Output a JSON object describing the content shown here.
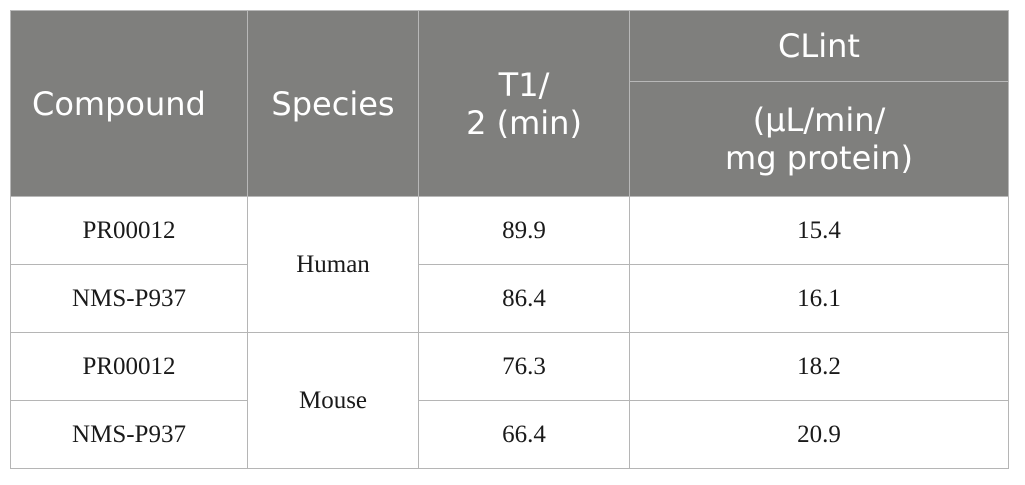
{
  "table": {
    "headers": {
      "compound": "Compound",
      "species": "Species",
      "t_half": "T1/\n2 (min)",
      "clint": "CLint",
      "clint_units": "(µL/min/\nmg protein)"
    },
    "groups": [
      {
        "species": "Human",
        "rows": [
          {
            "compound": "PR00012",
            "t_half": "89.9",
            "clint": "15.4"
          },
          {
            "compound": "NMS-P937",
            "t_half": "86.4",
            "clint": "16.1"
          }
        ]
      },
      {
        "species": "Mouse",
        "rows": [
          {
            "compound": "PR00012",
            "t_half": "76.3",
            "clint": "18.2"
          },
          {
            "compound": "NMS-P937",
            "t_half": "66.4",
            "clint": "20.9"
          }
        ]
      }
    ]
  }
}
